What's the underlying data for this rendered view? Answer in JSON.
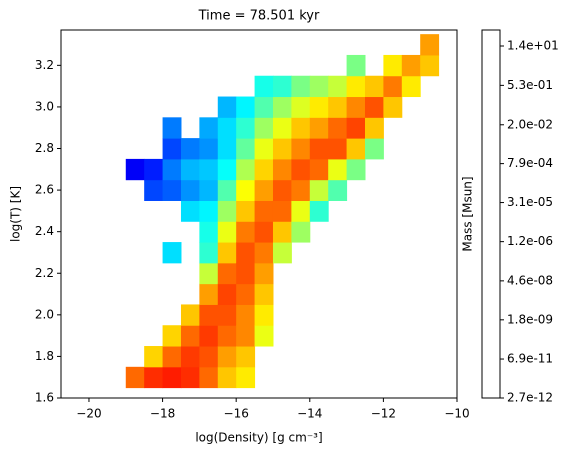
{
  "chart_data": {
    "type": "heatmap",
    "title": "Time = 78.501 kyr",
    "x_label": "log(Density) [g cm⁻³]",
    "y_label": "log(T) [K]",
    "xlim": [
      -20.76,
      -10
    ],
    "xticks": [
      {
        "value": -20,
        "label": "−20"
      },
      {
        "value": -18,
        "label": "−18"
      },
      {
        "value": -16,
        "label": "−16"
      },
      {
        "value": -14,
        "label": "−14"
      },
      {
        "value": -12,
        "label": "−12"
      },
      {
        "value": -10,
        "label": "−10"
      }
    ],
    "ylim": [
      1.6,
      3.37
    ],
    "yticks": [
      1.6,
      1.8,
      {
        "value": 2,
        "label": "2.0"
      },
      2.2,
      2.4,
      2.6,
      2.8,
      {
        "value": 3,
        "label": "3.0"
      },
      3.2
    ],
    "colormap": "jet",
    "log_color": true,
    "colorbar": {
      "label": "Mass [Msun]",
      "clim": [
        2.7e-12,
        53
      ],
      "ticks": [
        {
          "value": 2.7e-12,
          "label": "2.7e-12"
        },
        {
          "value": 6.9e-11,
          "label": "6.9e-11"
        },
        {
          "value": 1.8e-09,
          "label": "1.8e-09"
        },
        {
          "value": 4.6e-08,
          "label": "4.6e-08"
        },
        {
          "value": 1.2e-06,
          "label": "1.2e-06"
        },
        {
          "value": 3.1e-05,
          "label": "3.1e-05"
        },
        {
          "value": 0.00079,
          "label": "7.9e-04"
        },
        {
          "value": 0.02,
          "label": "2.0e-02"
        },
        {
          "value": 0.53,
          "label": "5.3e-01"
        },
        {
          "value": 14,
          "label": "1.4e+01"
        }
      ]
    },
    "x": [
      -18.75,
      -18.75,
      -18.25,
      -18.25,
      -18.25,
      -18.25,
      -17.75,
      -17.75,
      -17.75,
      -17.75,
      -17.75,
      -17.75,
      -17.75,
      -17.75,
      -17.25,
      -17.25,
      -17.25,
      -17.25,
      -17.25,
      -17.25,
      -17.25,
      -17.25,
      -16.75,
      -16.75,
      -16.75,
      -16.75,
      -16.75,
      -16.75,
      -16.75,
      -16.75,
      -16.75,
      -16.75,
      -16.75,
      -16.75,
      -16.75,
      -16.25,
      -16.25,
      -16.25,
      -16.25,
      -16.25,
      -16.25,
      -16.25,
      -16.25,
      -16.25,
      -16.25,
      -16.25,
      -16.25,
      -16.25,
      -16.25,
      -15.75,
      -15.75,
      -15.75,
      -15.75,
      -15.75,
      -15.75,
      -15.75,
      -15.75,
      -15.75,
      -15.75,
      -15.75,
      -15.75,
      -15.75,
      -15.75,
      -15.25,
      -15.25,
      -15.25,
      -15.25,
      -15.25,
      -15.25,
      -15.25,
      -15.25,
      -15.25,
      -15.25,
      -15.25,
      -15.25,
      -15.25,
      -14.75,
      -14.75,
      -14.75,
      -14.75,
      -14.75,
      -14.75,
      -14.75,
      -14.75,
      -14.75,
      -14.25,
      -14.25,
      -14.25,
      -14.25,
      -14.25,
      -14.25,
      -14.25,
      -14.25,
      -13.75,
      -13.75,
      -13.75,
      -13.75,
      -13.75,
      -13.75,
      -13.75,
      -13.25,
      -13.25,
      -13.25,
      -13.25,
      -13.25,
      -13.25,
      -12.75,
      -12.75,
      -12.75,
      -12.75,
      -12.75,
      -12.75,
      -12.25,
      -12.25,
      -12.25,
      -12.25,
      -11.75,
      -11.75,
      -11.75,
      -11.25,
      -11.25,
      -10.75,
      -10.75
    ],
    "y": [
      1.7,
      2.7,
      1.7,
      1.8,
      2.6,
      2.7,
      1.7,
      1.8,
      1.9,
      2.3,
      2.6,
      2.7,
      2.8,
      2.9,
      1.7,
      1.8,
      1.9,
      2.0,
      2.5,
      2.6,
      2.7,
      2.8,
      1.7,
      1.8,
      1.9,
      2.0,
      2.1,
      2.2,
      2.3,
      2.4,
      2.5,
      2.6,
      2.7,
      2.8,
      2.9,
      1.7,
      1.8,
      1.9,
      2.0,
      2.1,
      2.2,
      2.3,
      2.4,
      2.5,
      2.6,
      2.7,
      2.8,
      2.9,
      3.0,
      1.7,
      1.8,
      1.9,
      2.0,
      2.1,
      2.2,
      2.3,
      2.4,
      2.5,
      2.6,
      2.7,
      2.8,
      2.9,
      3.0,
      1.9,
      2.0,
      2.1,
      2.2,
      2.3,
      2.4,
      2.5,
      2.6,
      2.7,
      2.8,
      2.9,
      3.0,
      3.1,
      2.3,
      2.4,
      2.5,
      2.6,
      2.7,
      2.8,
      2.9,
      3.0,
      3.1,
      2.4,
      2.5,
      2.6,
      2.7,
      2.8,
      2.9,
      3.0,
      3.1,
      2.5,
      2.6,
      2.7,
      2.8,
      2.9,
      3.0,
      3.1,
      2.6,
      2.7,
      2.8,
      2.9,
      3.0,
      3.1,
      2.7,
      2.8,
      2.9,
      3.0,
      3.1,
      3.2,
      2.8,
      2.9,
      3.0,
      3.1,
      3.0,
      3.1,
      3.2,
      3.1,
      3.2,
      3.2,
      3.3
    ],
    "values": [
      0.05,
      1e-10,
      0.3,
      0.002,
      1e-09,
      3e-10,
      0.5,
      0.05,
      0.002,
      1e-07,
      2e-09,
      5e-09,
      1e-09,
      5e-09,
      0.3,
      0.2,
      0.05,
      0.003,
      1e-07,
      1e-08,
      3e-08,
      5e-09,
      0.05,
      0.1,
      0.2,
      0.1,
      0.01,
      0.0001,
      1e-06,
      5e-07,
      2e-07,
      3e-08,
      5e-08,
      1e-08,
      2e-08,
      0.003,
      0.01,
      0.05,
      0.1,
      0.15,
      0.05,
      0.003,
      0.0003,
      3e-05,
      3e-06,
      3e-07,
      1e-07,
      1e-07,
      3e-08,
      0.001,
      0.003,
      0.02,
      0.02,
      0.05,
      0.1,
      0.1,
      0.03,
      0.003,
      0.0005,
      5e-05,
      5e-06,
      1e-06,
      2e-07,
      0.0003,
      0.001,
      0.003,
      0.01,
      0.03,
      0.1,
      0.05,
      0.01,
      0.002,
      0.0003,
      3e-05,
      3e-06,
      5e-07,
      0.0001,
      0.003,
      0.05,
      0.08,
      0.02,
      0.003,
      0.0003,
      3e-05,
      1e-06,
      3e-05,
      0.0003,
      0.03,
      0.1,
      0.02,
      0.003,
      0.0002,
      1e-05,
      1e-06,
      0.0001,
      0.05,
      0.1,
      0.01,
      0.001,
      3e-05,
      3e-06,
      0.0003,
      0.1,
      0.05,
      0.003,
      0.0001,
      1e-05,
      0.003,
      0.15,
      0.02,
      0.001,
      1e-05,
      1e-05,
      0.003,
      0.1,
      0.003,
      0.003,
      0.03,
      0.001,
      0.001,
      0.01,
      0.003,
      0.01
    ]
  }
}
